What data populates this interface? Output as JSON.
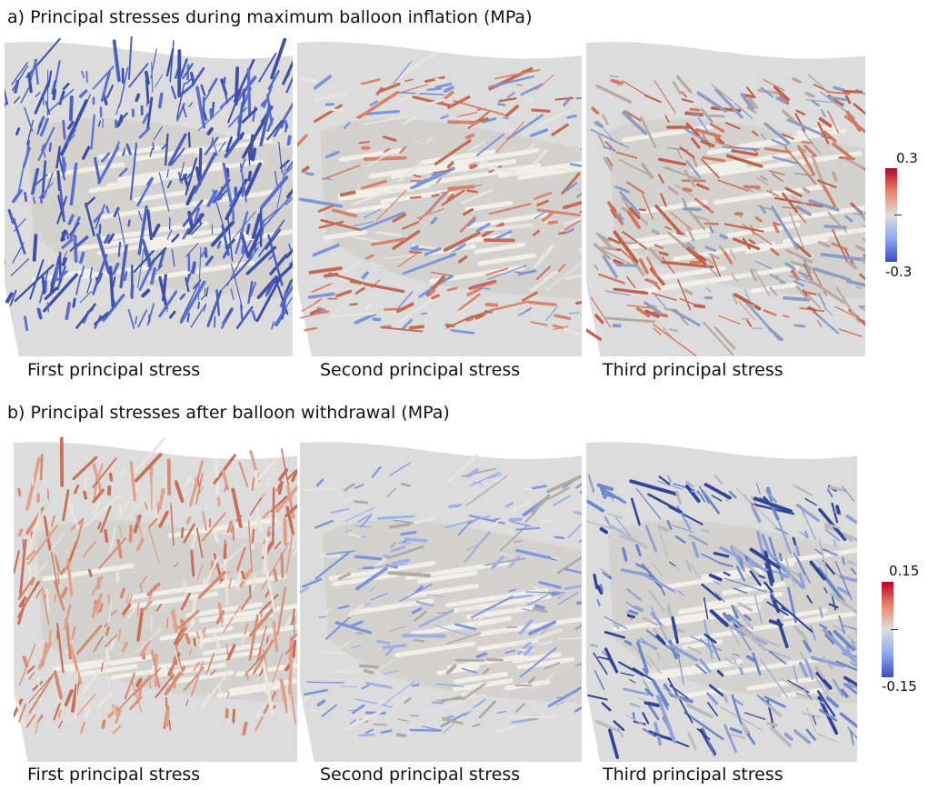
{
  "panels": [
    {
      "title": "a) Principal stresses during maximum balloon inflation (MPa)",
      "captions": [
        "First principal stress",
        "Second principal stress",
        "Third principal stress"
      ],
      "colorbar": {
        "max": 0.3,
        "min": -0.3
      }
    },
    {
      "title": "b) Principal stresses after balloon withdrawal (MPa)",
      "captions": [
        "First principal stress",
        "Second principal stress",
        "Third principal stress"
      ],
      "colorbar": {
        "max": 0.15,
        "min": -0.15
      }
    }
  ]
}
